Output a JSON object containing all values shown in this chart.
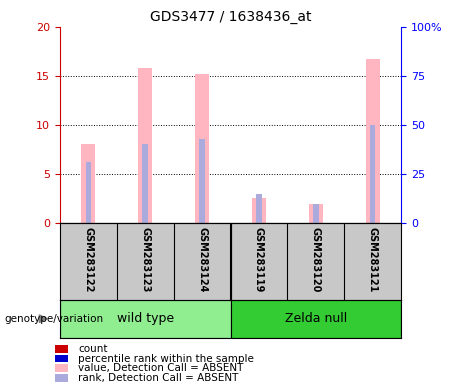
{
  "title": "GDS3477 / 1638436_at",
  "samples": [
    "GSM283122",
    "GSM283123",
    "GSM283124",
    "GSM283119",
    "GSM283120",
    "GSM283121"
  ],
  "group_labels": [
    "wild type",
    "Zelda null"
  ],
  "group_colors": [
    "#90EE90",
    "#33CC33"
  ],
  "pink_values": [
    8.0,
    15.8,
    15.2,
    2.5,
    1.9,
    16.7
  ],
  "blue_values": [
    6.2,
    8.0,
    8.5,
    2.9,
    1.9,
    10.0
  ],
  "ylim_left": [
    0,
    20
  ],
  "ylim_right": [
    0,
    100
  ],
  "yticks_left": [
    0,
    5,
    10,
    15,
    20
  ],
  "ytick_labels_right": [
    "0",
    "25",
    "50",
    "75",
    "100%"
  ],
  "pink_color": "#FFB6C1",
  "blue_color": "#AAAADD",
  "red_color": "#CC0000",
  "dark_blue_color": "#0000CC",
  "bg_color": "#C8C8C8",
  "legend_labels": [
    "count",
    "percentile rank within the sample",
    "value, Detection Call = ABSENT",
    "rank, Detection Call = ABSENT"
  ],
  "legend_colors": [
    "#CC0000",
    "#0000CC",
    "#FFB6C1",
    "#AAAADD"
  ]
}
